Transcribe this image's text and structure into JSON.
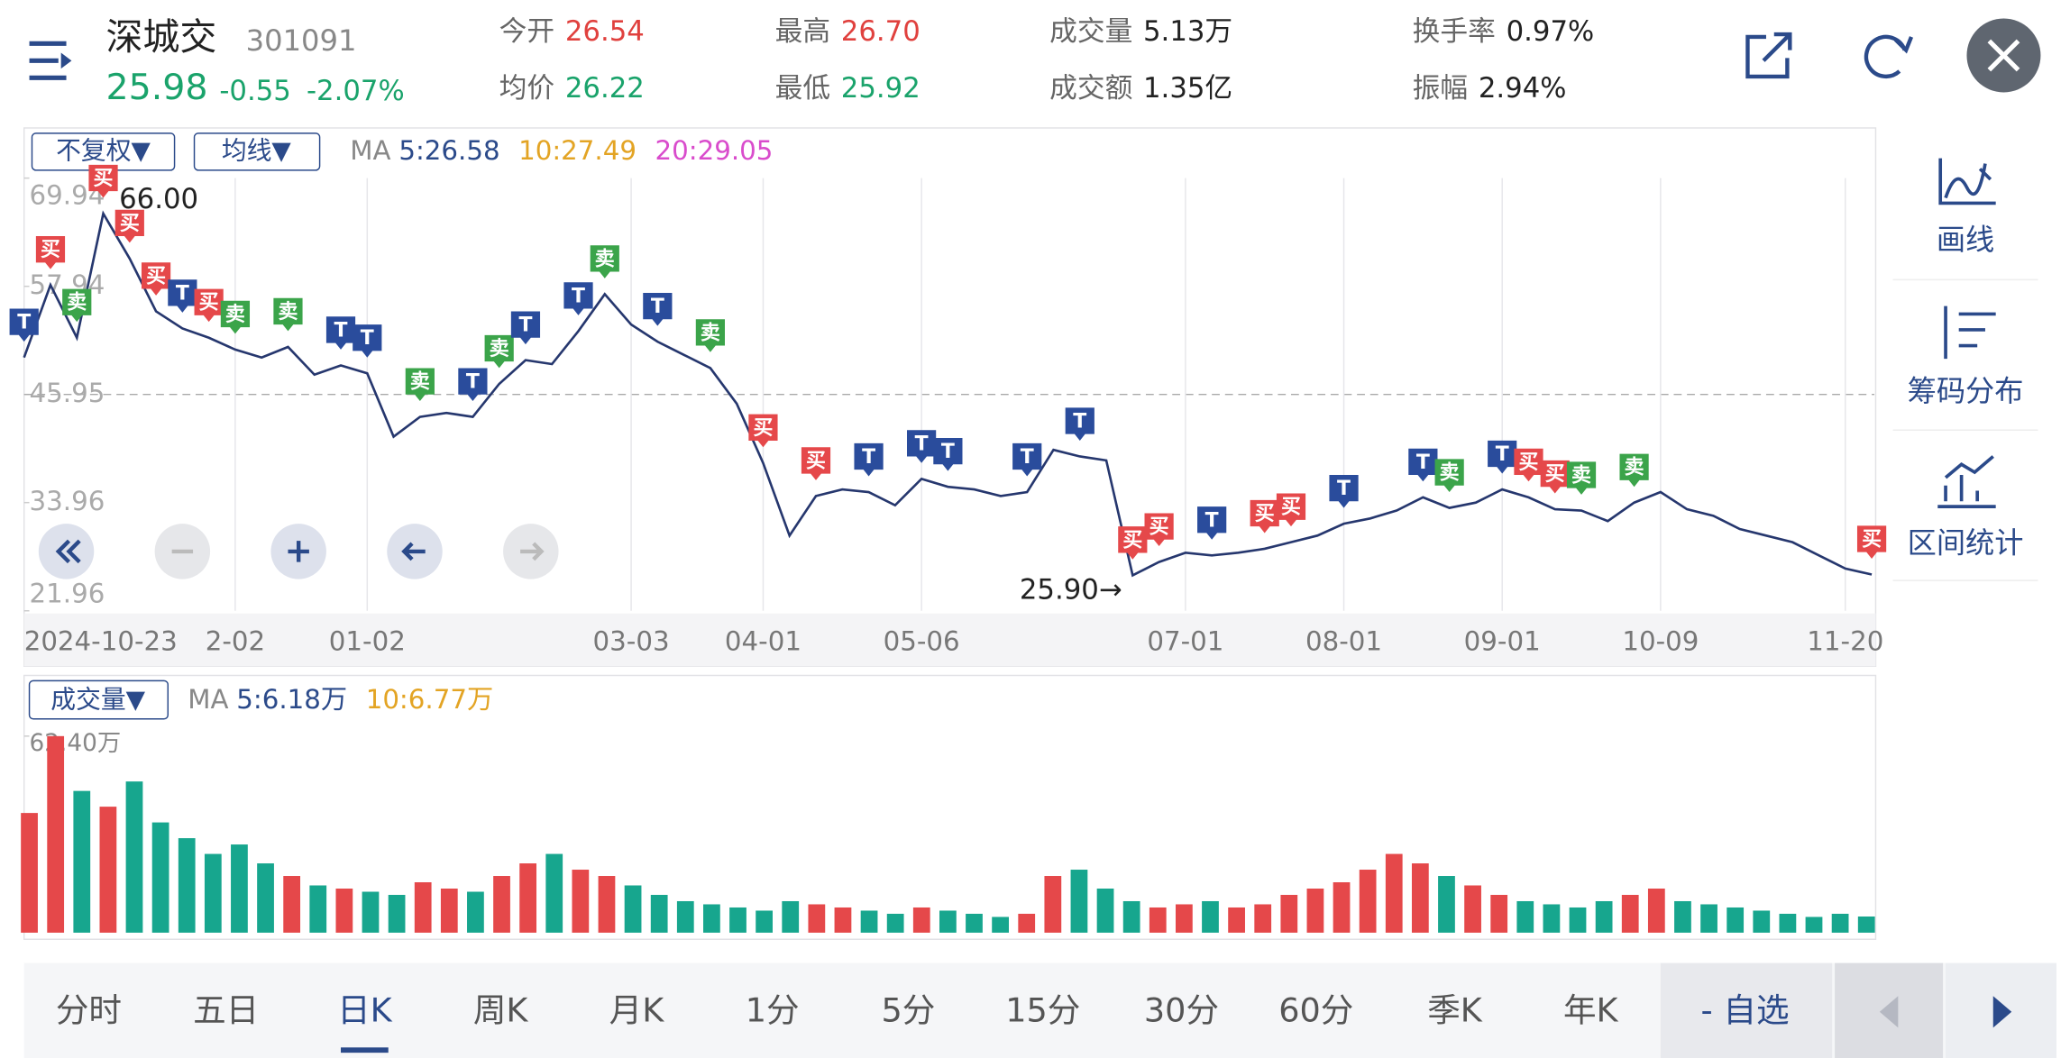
{
  "header": {
    "name": "深城交",
    "code": "301091",
    "price": "25.98",
    "change": "-0.55",
    "change_pct": "-2.07%",
    "stats": [
      {
        "label": "今开",
        "value": "26.54",
        "color": "#e0413e"
      },
      {
        "label": "最高",
        "value": "26.70",
        "color": "#e0413e"
      },
      {
        "label": "成交量",
        "value": "5.13万",
        "color": "#222"
      },
      {
        "label": "换手率",
        "value": "0.97%",
        "color": "#222"
      },
      {
        "label": "均价",
        "value": "26.22",
        "color": "#1aa36b"
      },
      {
        "label": "最低",
        "value": "25.92",
        "color": "#1aa36b"
      },
      {
        "label": "成交额",
        "value": "1.35亿",
        "color": "#222"
      },
      {
        "label": "振幅",
        "value": "2.94%",
        "color": "#222"
      }
    ]
  },
  "toolbar": {
    "adjust": "不复权▼",
    "ma_menu": "均线▼",
    "ma_items": [
      {
        "text": "MA",
        "color": "#888"
      },
      {
        "text": "5:26.58",
        "color": "#2b4a8a"
      },
      {
        "text": "10:27.49",
        "color": "#e3a424"
      },
      {
        "text": "20:29.05",
        "color": "#d94ccc"
      }
    ]
  },
  "volume_toolbar": {
    "menu": "成交量▼",
    "ma_items": [
      {
        "text": "MA",
        "color": "#888"
      },
      {
        "text": "5:6.18万",
        "color": "#2b4a8a"
      },
      {
        "text": "10:6.77万",
        "color": "#e3a424"
      }
    ]
  },
  "side_panel": [
    "画线",
    "筹码分布",
    "区间统计"
  ],
  "tabs": {
    "items": [
      "分时",
      "五日",
      "日K",
      "周K",
      "月K",
      "1分",
      "5分",
      "15分",
      "30分",
      "60分",
      "季K",
      "年K"
    ],
    "selected": 2,
    "watchlist": "- 自选"
  },
  "chart_data": [
    {
      "type": "line",
      "color": "#26376e",
      "ylim": [
        21.96,
        69.94
      ],
      "yticks": [
        69.94,
        57.94,
        45.95,
        33.96,
        21.96
      ],
      "reference_line": 45.95,
      "annotations": [
        {
          "text": "66.00",
          "value": 66.0,
          "index": 3
        },
        {
          "text": "25.90→",
          "value": 25.9,
          "index": 42
        }
      ],
      "categories": [
        "2024-10-23",
        null,
        null,
        null,
        null,
        null,
        null,
        null,
        "2-02",
        null,
        null,
        null,
        null,
        "01-02",
        null,
        null,
        null,
        null,
        null,
        null,
        null,
        null,
        null,
        "03-03",
        null,
        null,
        null,
        null,
        "04-01",
        null,
        null,
        null,
        null,
        null,
        "05-06",
        null,
        null,
        null,
        null,
        null,
        null,
        null,
        null,
        null,
        "07-01",
        null,
        null,
        null,
        null,
        null,
        "08-01",
        null,
        null,
        null,
        null,
        null,
        "09-01",
        null,
        null,
        null,
        null,
        null,
        "10-09",
        null,
        null,
        null,
        null,
        null,
        null,
        "11-20",
        null
      ],
      "values": [
        50.05,
        58.09,
        52.24,
        66.0,
        61.02,
        55.17,
        53.27,
        52.24,
        50.92,
        50.05,
        51.22,
        48.14,
        49.17,
        48.29,
        41.27,
        43.46,
        43.9,
        43.46,
        47.12,
        49.75,
        49.31,
        52.97,
        57.07,
        53.7,
        51.8,
        50.34,
        48.88,
        44.93,
        38.34,
        30.3,
        34.68,
        35.42,
        35.12,
        33.66,
        36.59,
        35.71,
        35.42,
        34.68,
        35.12,
        39.81,
        39.07,
        38.63,
        25.9,
        27.37,
        28.39,
        28.1,
        28.39,
        28.83,
        29.56,
        30.3,
        31.61,
        32.2,
        33.08,
        34.54,
        33.37,
        33.95,
        35.42,
        34.54,
        33.22,
        33.08,
        31.91,
        33.95,
        35.12,
        33.22,
        32.49,
        31.03,
        30.3,
        29.56,
        28.1,
        26.64,
        25.98
      ],
      "signals": [
        "T",
        "买",
        "卖",
        "买",
        "买",
        "买",
        "T",
        "买",
        "卖",
        null,
        "卖",
        null,
        "T",
        "T",
        null,
        "卖",
        null,
        "T",
        "卖",
        "T",
        null,
        "T",
        "卖",
        null,
        "T",
        null,
        "卖",
        null,
        "买",
        null,
        "买",
        null,
        "T",
        null,
        "T",
        "T",
        null,
        null,
        "T",
        null,
        "T",
        null,
        "买",
        "买",
        null,
        "T",
        null,
        "买",
        "买",
        null,
        "T",
        null,
        null,
        "T",
        "卖",
        null,
        "T",
        "买",
        "买",
        "卖",
        null,
        "卖",
        null,
        null,
        null,
        null,
        null,
        null,
        null,
        null,
        "买"
      ],
      "signal_colors": {
        "买": "#e5484a",
        "卖": "#3ba44a",
        "T": "#2a4c9c"
      }
    },
    {
      "type": "bar",
      "ylim": [
        0,
        62.4
      ],
      "yticks": [
        {
          "value": 62.4,
          "label": "62.40万"
        }
      ],
      "up_color": "#e5484a",
      "down_color": "#17a68e",
      "values": [
        38,
        62.4,
        45,
        40,
        48,
        35,
        30,
        25,
        28,
        22,
        18,
        15,
        14,
        13,
        12,
        16,
        14,
        13,
        18,
        22,
        25,
        20,
        18,
        15,
        12,
        10,
        9,
        8,
        7,
        10,
        9,
        8,
        7,
        6,
        8,
        7,
        6,
        5,
        6,
        18,
        20,
        14,
        10,
        8,
        9,
        10,
        8,
        9,
        12,
        14,
        16,
        20,
        25,
        22,
        18,
        15,
        12,
        10,
        9,
        8,
        10,
        12,
        14,
        10,
        9,
        8,
        7,
        6,
        5,
        6,
        5.13
      ]
    }
  ]
}
